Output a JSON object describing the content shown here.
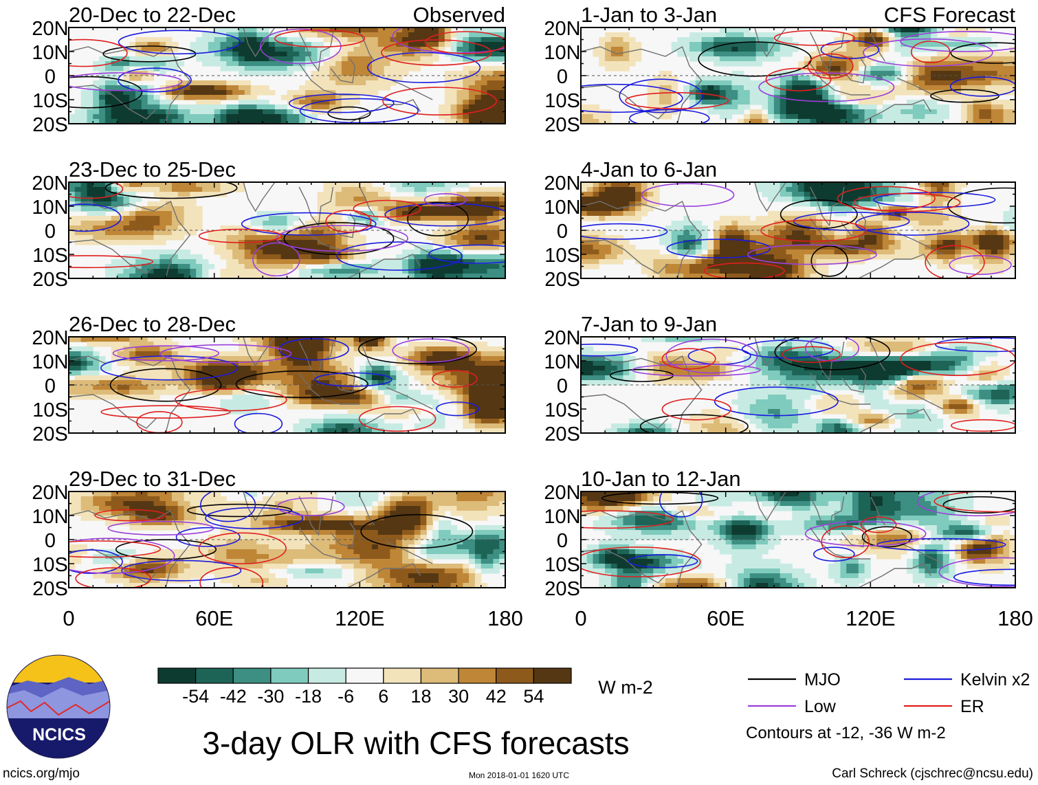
{
  "page": {
    "title": "3-day OLR with CFS forecasts",
    "units": "W m-2",
    "contour_note": "Contours at -12, -36 W m-2",
    "source_url": "ncics.org/mjo",
    "timestamp": "Mon 2018-01-01 1620 UTC",
    "author": "Carl Schreck (cjschrec@ncsu.edu)",
    "logo_text": "NCICS"
  },
  "chart_data": {
    "type": "heatmap",
    "variable": "OLR anomaly (3-day mean)",
    "units": "W m-2",
    "x_range": [
      0,
      180
    ],
    "y_range": [
      -20,
      20
    ],
    "x_ticks": [
      "0",
      "60E",
      "120E",
      "180"
    ],
    "y_ticks": [
      "20N",
      "10N",
      "0",
      "10S",
      "20S"
    ],
    "column_labels": {
      "left": "Observed",
      "right": "CFS Forecast"
    },
    "panels": [
      {
        "column": "left",
        "row": 0,
        "label": "20-Dec to 22-Dec",
        "tag": "Observed"
      },
      {
        "column": "left",
        "row": 1,
        "label": "23-Dec to 25-Dec",
        "tag": ""
      },
      {
        "column": "left",
        "row": 2,
        "label": "26-Dec to 28-Dec",
        "tag": ""
      },
      {
        "column": "left",
        "row": 3,
        "label": "29-Dec to 31-Dec",
        "tag": ""
      },
      {
        "column": "right",
        "row": 0,
        "label": "1-Jan to 3-Jan",
        "tag": "CFS Forecast"
      },
      {
        "column": "right",
        "row": 1,
        "label": "4-Jan to 6-Jan",
        "tag": ""
      },
      {
        "column": "right",
        "row": 2,
        "label": "7-Jan to 9-Jan",
        "tag": ""
      },
      {
        "column": "right",
        "row": 3,
        "label": "10-Jan to 12-Jan",
        "tag": ""
      }
    ],
    "colorbar": {
      "labels": [
        "-54",
        "-42",
        "-30",
        "-18",
        "-6",
        "6",
        "18",
        "30",
        "42",
        "54"
      ],
      "colors": [
        "#0e3b30",
        "#1d6457",
        "#3c8f82",
        "#7fcbbd",
        "#c7ebe3",
        "#f7f7f7",
        "#f3e3bb",
        "#ddbb79",
        "#bf8637",
        "#8e5a1c",
        "#553713"
      ]
    },
    "legend": [
      {
        "name": "MJO",
        "color": "#000000"
      },
      {
        "name": "Kelvin x2",
        "color": "#1a1adf"
      },
      {
        "name": "Low",
        "color": "#9b3fdc"
      },
      {
        "name": "ER",
        "color": "#e01e1e"
      }
    ]
  }
}
